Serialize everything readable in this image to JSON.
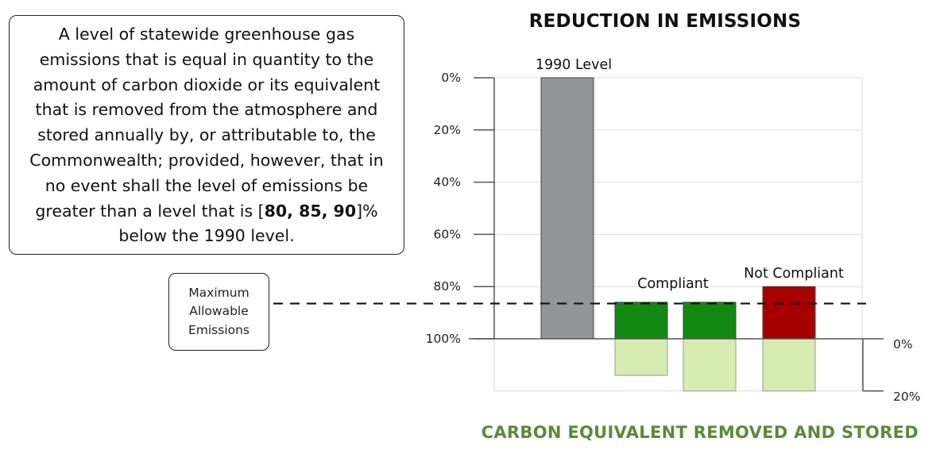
{
  "definition": {
    "text_before": "A level of statewide greenhouse gas emissions that is equal in quantity to the amount of carbon dioxide or its equivalent that is removed from the atmosphere and stored annually by, or attributable to, the Commonwealth; provided, however, that in no event shall the level of emissions be greater than a level that is [",
    "bold_values": "80, 85, 90",
    "text_after": "]% below the 1990 level."
  },
  "max_allowable_label": "Maximum Allowable Emissions",
  "chart_data": {
    "type": "bar",
    "title": "REDUCTION IN EMISSIONS",
    "bottom_title": "CARBON EQUIVALENT REMOVED AND STORED",
    "left_axis": {
      "ticks": [
        "0%",
        "20%",
        "40%",
        "60%",
        "80%",
        "100%"
      ],
      "tick_values": [
        0,
        20,
        40,
        60,
        80,
        100
      ],
      "meaning": "reduction from 1990 level"
    },
    "right_axis": {
      "ticks": [
        "0%",
        "20%"
      ],
      "tick_values": [
        0,
        20
      ]
    },
    "max_allowable_reduction": 86.5,
    "bars": [
      {
        "label": "1990 Level",
        "emissions_percent_of_1990": 100,
        "removed_percent": 0,
        "color": "#939598",
        "status": "baseline"
      },
      {
        "label": "",
        "emissions_percent_of_1990": 14,
        "removed_percent": 14,
        "color": "#128a12",
        "status": "compliant"
      },
      {
        "label": "",
        "emissions_percent_of_1990": 14,
        "removed_percent": 20,
        "color": "#128a12",
        "status": "compliant"
      },
      {
        "label": "",
        "emissions_percent_of_1990": 20,
        "removed_percent": 20,
        "color": "#a60000",
        "status": "not compliant"
      }
    ],
    "group_labels": {
      "compliant": "Compliant",
      "not_compliant": "Not Compliant"
    },
    "removed_color": "#d6ecb1",
    "grid": true
  }
}
